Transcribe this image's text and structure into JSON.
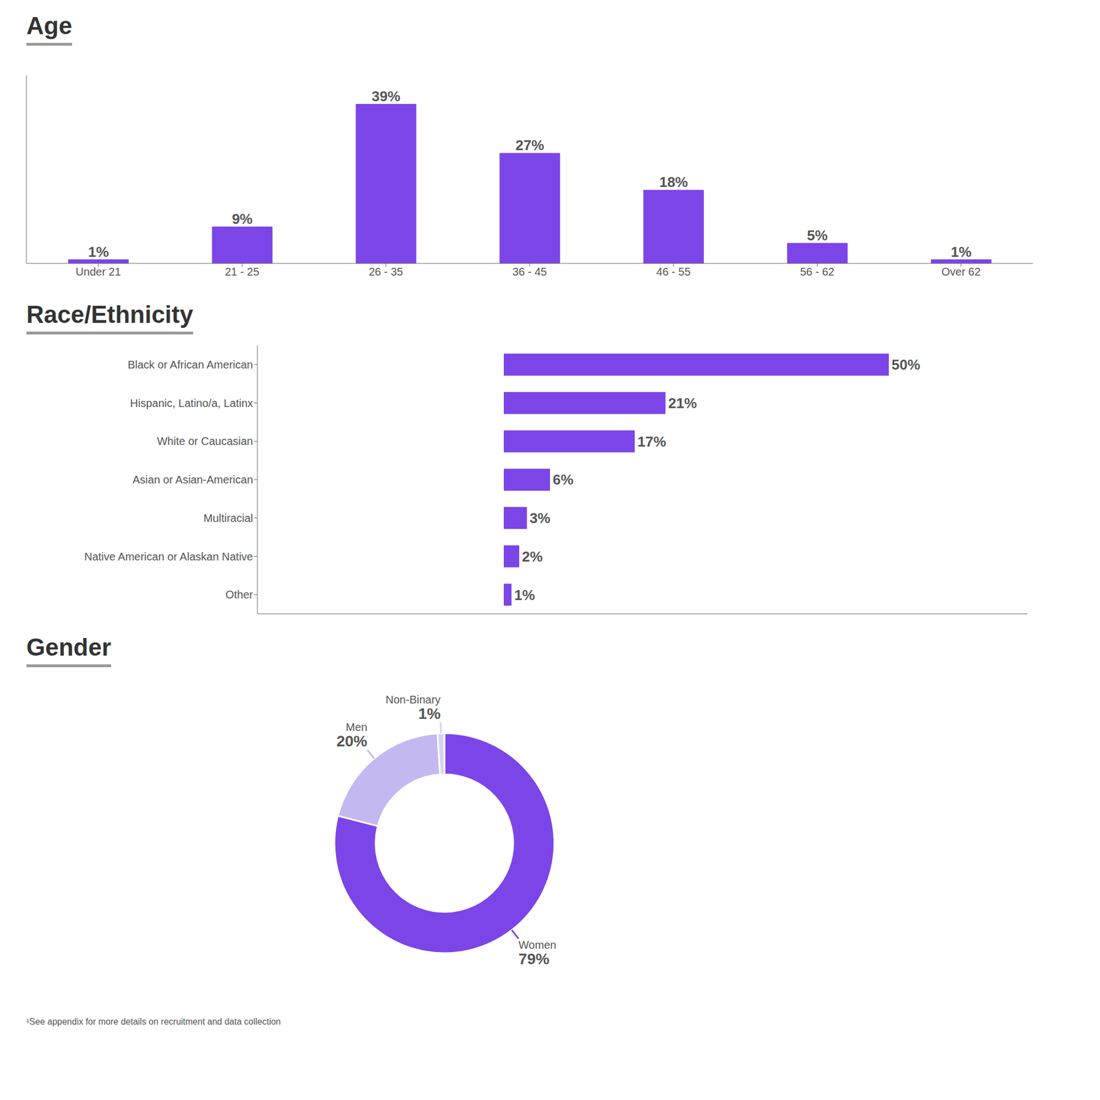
{
  "chart_data": [
    {
      "type": "bar",
      "title": "Age",
      "categories": [
        "Under 21",
        "21 - 25",
        "26 - 35",
        "36 - 45",
        "46 - 55",
        "56 - 62",
        "Over 62"
      ],
      "values": [
        1,
        9,
        39,
        27,
        18,
        5,
        1
      ],
      "value_labels": [
        "1%",
        "9%",
        "39%",
        "27%",
        "18%",
        "5%",
        "1%"
      ],
      "color": "#7B45E8",
      "ylim": [
        0,
        46
      ],
      "data_labels": true,
      "tick_labels": "x"
    },
    {
      "type": "bar",
      "orientation": "horizontal",
      "title": "Race/Ethnicity",
      "categories": [
        "Black or African American",
        "Hispanic, Latino/a, Latinx",
        "White or Caucasian",
        "Asian or Asian-American",
        "Multiracial",
        "Native American or Alaskan Native",
        "Other"
      ],
      "values": [
        50,
        21,
        17,
        6,
        3,
        2,
        1
      ],
      "value_labels": [
        "50%",
        "21%",
        "17%",
        "6%",
        "3%",
        "2%",
        "1%"
      ],
      "color": "#7B45E8",
      "xlim": [
        -32,
        68
      ],
      "data_labels": true,
      "tick_labels": "y"
    },
    {
      "type": "pie",
      "title": "Gender",
      "categories": [
        "Women",
        "Men",
        "Non-Binary"
      ],
      "values": [
        79,
        20,
        1
      ],
      "value_labels": [
        "79%",
        "20%",
        "1%"
      ],
      "colors": [
        "#7B45E8",
        "#C4B8F0",
        "#D8D0F4"
      ],
      "data_labels": true,
      "annotations": [
        "¹See appendix for more details on recruitment and data collection"
      ]
    }
  ]
}
